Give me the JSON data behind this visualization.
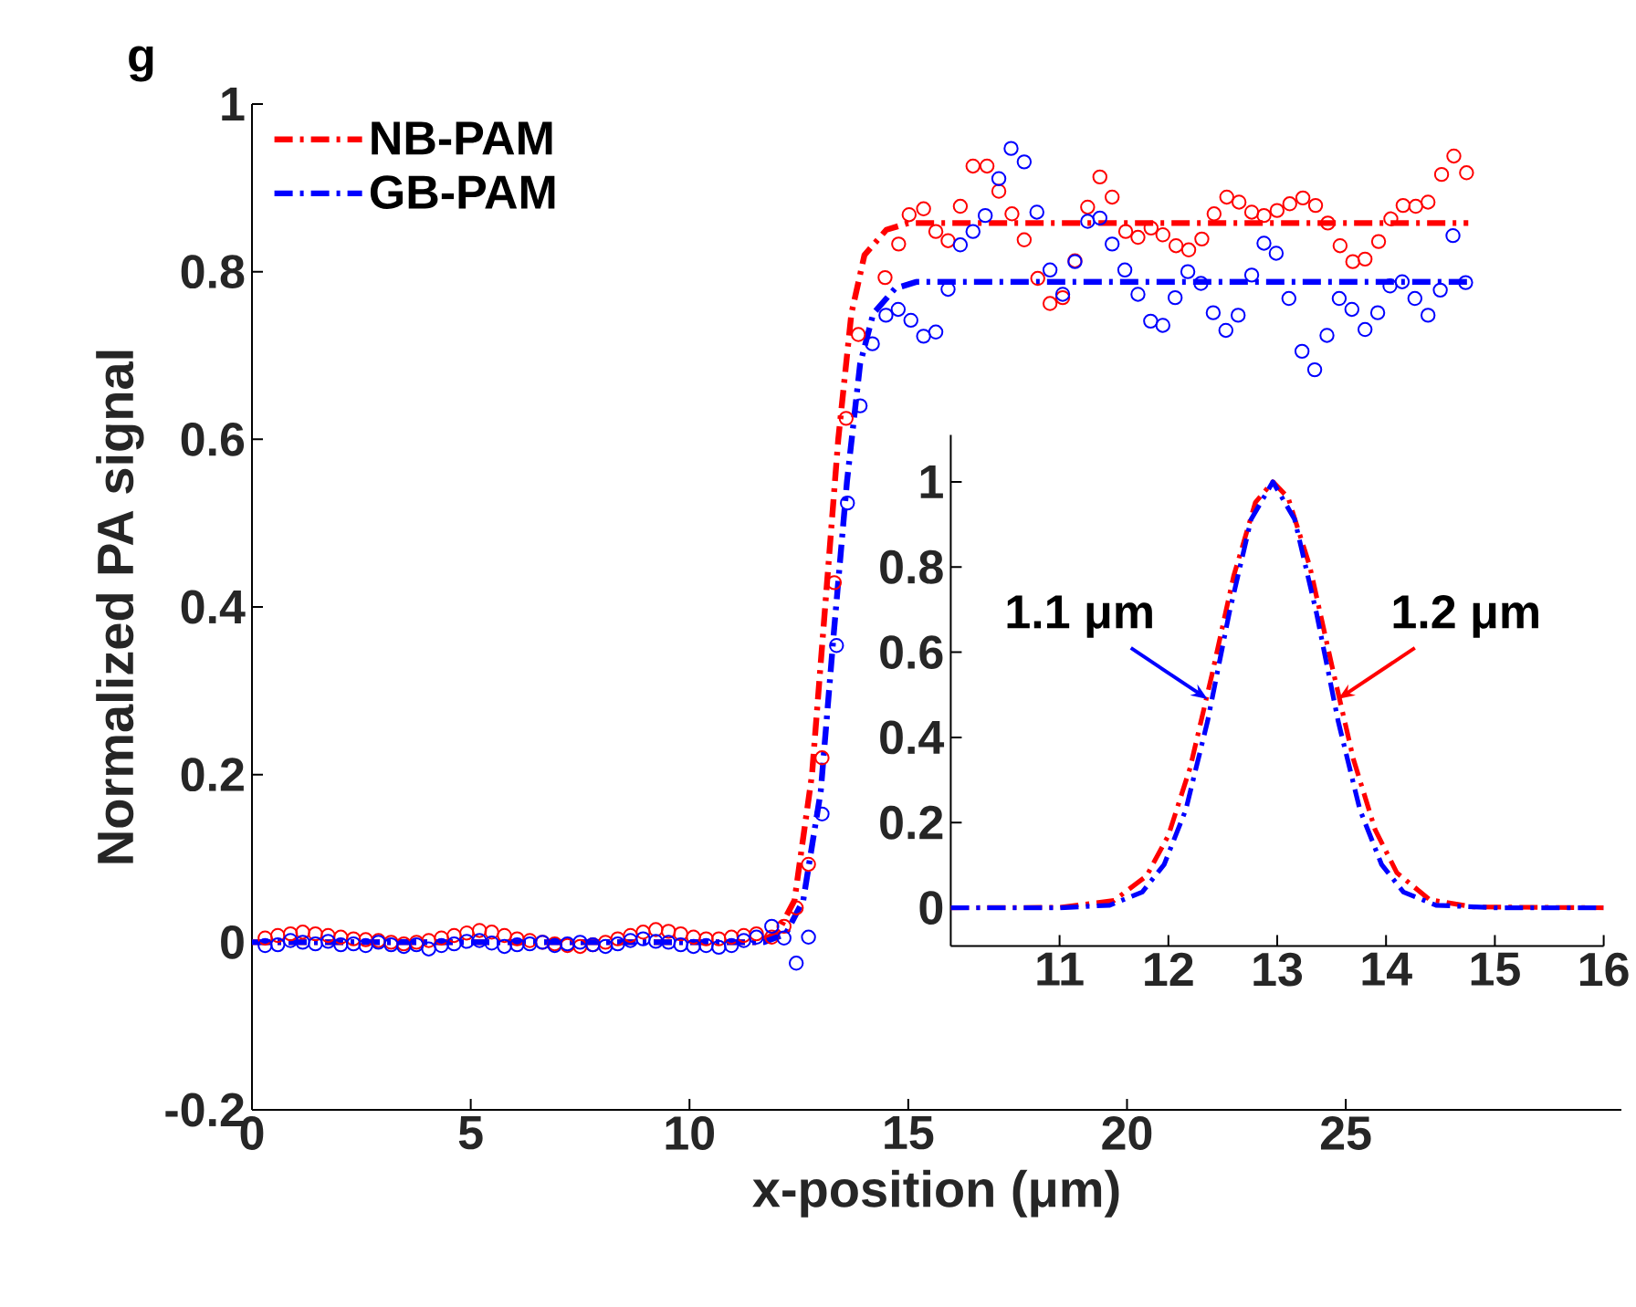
{
  "chart_data": [
    {
      "type": "line",
      "title": "g",
      "xlabel": "x-position (μm)",
      "ylabel": "Normalized PA signal",
      "xlim": [
        0,
        31.3
      ],
      "ylim": [
        -0.2,
        1
      ],
      "xticks": [
        0,
        5,
        10,
        15,
        20,
        25
      ],
      "yticks": [
        -0.2,
        0,
        0.2,
        0.4,
        0.6,
        0.8,
        1
      ],
      "grid": false,
      "legend": "top left",
      "series": [
        {
          "type": "scatter",
          "marker": "circle",
          "color": "#ff0000",
          "x": [
            0.3,
            0.59,
            0.88,
            1.16,
            1.45,
            1.74,
            2.03,
            2.32,
            2.6,
            2.89,
            3.18,
            3.47,
            3.76,
            4.04,
            4.33,
            4.62,
            4.91,
            5.2,
            5.48,
            5.77,
            6.06,
            6.35,
            6.64,
            6.92,
            7.21,
            7.5,
            7.79,
            8.08,
            8.36,
            8.65,
            8.94,
            9.23,
            9.52,
            9.8,
            10.09,
            10.38,
            10.67,
            10.96,
            11.24,
            11.53,
            11.88,
            12.16,
            12.44,
            12.72,
            13.03,
            13.31,
            13.58,
            13.86,
            14.47,
            14.78,
            15.02,
            15.35,
            15.63,
            15.91,
            16.19,
            16.48,
            16.8,
            17.07,
            17.37,
            17.65,
            17.96,
            18.24,
            18.53,
            18.81,
            19.1,
            19.38,
            19.66,
            19.97,
            20.25,
            20.55,
            20.82,
            21.12,
            21.41,
            21.71,
            21.99,
            22.28,
            22.56,
            22.85,
            23.13,
            23.43,
            23.72,
            24.02,
            24.31,
            24.59,
            24.87,
            25.16,
            25.44,
            25.75,
            26.03,
            26.31,
            26.6,
            26.88,
            27.19,
            27.47,
            27.76
          ],
          "values": [
            0.005,
            0.008,
            0.01,
            0.012,
            0.01,
            0.008,
            0.006,
            0.004,
            0.003,
            0.002,
            0.0,
            -0.002,
            0.0,
            0.002,
            0.005,
            0.008,
            0.011,
            0.014,
            0.012,
            0.008,
            0.004,
            0.002,
            0.0,
            -0.002,
            -0.004,
            -0.005,
            -0.003,
            0.0,
            0.004,
            0.008,
            0.012,
            0.015,
            0.013,
            0.01,
            0.006,
            0.004,
            0.004,
            0.006,
            0.008,
            0.01,
            0.006,
            0.019,
            0.041,
            0.093,
            0.22,
            0.429,
            0.625,
            0.725,
            0.793,
            0.833,
            0.868,
            0.875,
            0.848,
            0.837,
            0.878,
            0.926,
            0.926,
            0.896,
            0.869,
            0.838,
            0.792,
            0.762,
            0.769,
            0.813,
            0.877,
            0.913,
            0.889,
            0.848,
            0.841,
            0.852,
            0.844,
            0.831,
            0.826,
            0.839,
            0.869,
            0.889,
            0.883,
            0.871,
            0.867,
            0.873,
            0.881,
            0.888,
            0.879,
            0.858,
            0.831,
            0.812,
            0.815,
            0.836,
            0.863,
            0.879,
            0.878,
            0.883,
            0.916,
            0.938,
            0.918
          ]
        },
        {
          "type": "scatter",
          "marker": "circle",
          "color": "#0000ff",
          "x": [
            0.3,
            0.59,
            0.88,
            1.16,
            1.45,
            1.74,
            2.03,
            2.32,
            2.6,
            2.89,
            3.18,
            3.47,
            3.76,
            4.04,
            4.33,
            4.62,
            4.91,
            5.2,
            5.48,
            5.77,
            6.06,
            6.35,
            6.64,
            6.92,
            7.21,
            7.5,
            7.79,
            8.08,
            8.36,
            8.65,
            8.94,
            9.23,
            9.52,
            9.8,
            10.09,
            10.38,
            10.67,
            10.96,
            11.24,
            11.53,
            11.88,
            12.16,
            12.44,
            12.72,
            13.03,
            13.36,
            13.61,
            13.9,
            14.18,
            14.49,
            14.77,
            15.06,
            15.35,
            15.63,
            15.91,
            16.19,
            16.48,
            16.76,
            17.07,
            17.35,
            17.65,
            17.94,
            18.24,
            18.53,
            18.81,
            19.1,
            19.38,
            19.66,
            19.95,
            20.25,
            20.54,
            20.82,
            21.1,
            21.39,
            21.69,
            21.97,
            22.26,
            22.54,
            22.85,
            23.13,
            23.41,
            23.7,
            24.0,
            24.29,
            24.57,
            24.85,
            25.14,
            25.44,
            25.73,
            26.01,
            26.29,
            26.58,
            26.88,
            27.16,
            27.45,
            27.74
          ],
          "values": [
            -0.004,
            -0.003,
            0.002,
            0.0,
            -0.002,
            0.001,
            -0.003,
            -0.002,
            -0.004,
            0.0,
            -0.003,
            -0.005,
            -0.003,
            -0.008,
            -0.004,
            -0.002,
            0.001,
            0.002,
            -0.001,
            -0.005,
            -0.003,
            -0.002,
            0.0,
            -0.004,
            -0.002,
            0.0,
            -0.003,
            -0.005,
            -0.002,
            0.002,
            0.004,
            0.001,
            0.0,
            -0.003,
            -0.005,
            -0.004,
            -0.006,
            -0.004,
            0.002,
            0.006,
            0.019,
            0.005,
            -0.025,
            0.006,
            0.153,
            0.354,
            0.524,
            0.64,
            0.714,
            0.748,
            0.755,
            0.742,
            0.723,
            0.728,
            0.779,
            0.832,
            0.848,
            0.867,
            0.911,
            0.947,
            0.931,
            0.871,
            0.802,
            0.773,
            0.812,
            0.86,
            0.864,
            0.833,
            0.802,
            0.773,
            0.741,
            0.736,
            0.769,
            0.8,
            0.786,
            0.751,
            0.73,
            0.748,
            0.796,
            0.834,
            0.822,
            0.768,
            0.705,
            0.683,
            0.724,
            0.768,
            0.755,
            0.731,
            0.751,
            0.783,
            0.788,
            0.768,
            0.748,
            0.778,
            0.843,
            0.787
          ]
        },
        {
          "name": "NB-PAM",
          "line_style": "dashdot",
          "color": "#ff0000",
          "x": [
            0,
            11.5,
            12.0,
            12.4,
            12.8,
            13.1,
            13.4,
            13.7,
            14.0,
            14.5,
            15.0,
            27.8
          ],
          "values": [
            0,
            0,
            0.01,
            0.05,
            0.2,
            0.4,
            0.6,
            0.75,
            0.82,
            0.85,
            0.858,
            0.858
          ]
        },
        {
          "name": "GB-PAM",
          "line_style": "dashdot",
          "color": "#0000ff",
          "x": [
            0,
            11.7,
            12.2,
            12.6,
            13.0,
            13.3,
            13.6,
            13.9,
            14.2,
            14.7,
            15.2,
            27.8
          ],
          "values": [
            0,
            0,
            0.01,
            0.05,
            0.18,
            0.37,
            0.55,
            0.69,
            0.75,
            0.78,
            0.788,
            0.788
          ]
        }
      ]
    },
    {
      "type": "line",
      "xlim": [
        10,
        16
      ],
      "ylim": [
        -0.09,
        1.11
      ],
      "xticks": [
        11,
        12,
        13,
        14,
        15,
        16
      ],
      "yticks": [
        0,
        0.2,
        0.4,
        0.6,
        0.8,
        1
      ],
      "grid": false,
      "annotations": [
        {
          "text": "1.1 μm",
          "x": 12.36,
          "y": 0.49
        },
        {
          "text": "1.2 μm",
          "x": 13.56,
          "y": 0.49
        }
      ],
      "series": [
        {
          "line_style": "dashdot",
          "color": "#ff0000",
          "x": [
            10,
            11,
            11.5,
            11.8,
            12.0,
            12.2,
            12.4,
            12.6,
            12.8,
            12.96,
            13.1,
            13.3,
            13.5,
            13.7,
            13.9,
            14.1,
            14.4,
            14.8,
            16
          ],
          "values": [
            0,
            0.001,
            0.017,
            0.075,
            0.17,
            0.329,
            0.547,
            0.779,
            0.952,
            1,
            0.963,
            0.801,
            0.571,
            0.349,
            0.183,
            0.082,
            0.019,
            0.002,
            0
          ]
        },
        {
          "line_style": "dashdot",
          "color": "#0000ff",
          "x": [
            10,
            11,
            11.46,
            11.76,
            11.96,
            12.16,
            12.36,
            12.56,
            12.76,
            12.96,
            13.16,
            13.36,
            13.56,
            13.76,
            13.96,
            14.16,
            14.46,
            15,
            16
          ],
          "values": [
            0,
            0,
            0.006,
            0.037,
            0.101,
            0.23,
            0.438,
            0.693,
            0.912,
            1,
            0.912,
            0.693,
            0.438,
            0.23,
            0.101,
            0.037,
            0.006,
            0,
            0
          ]
        }
      ]
    }
  ]
}
